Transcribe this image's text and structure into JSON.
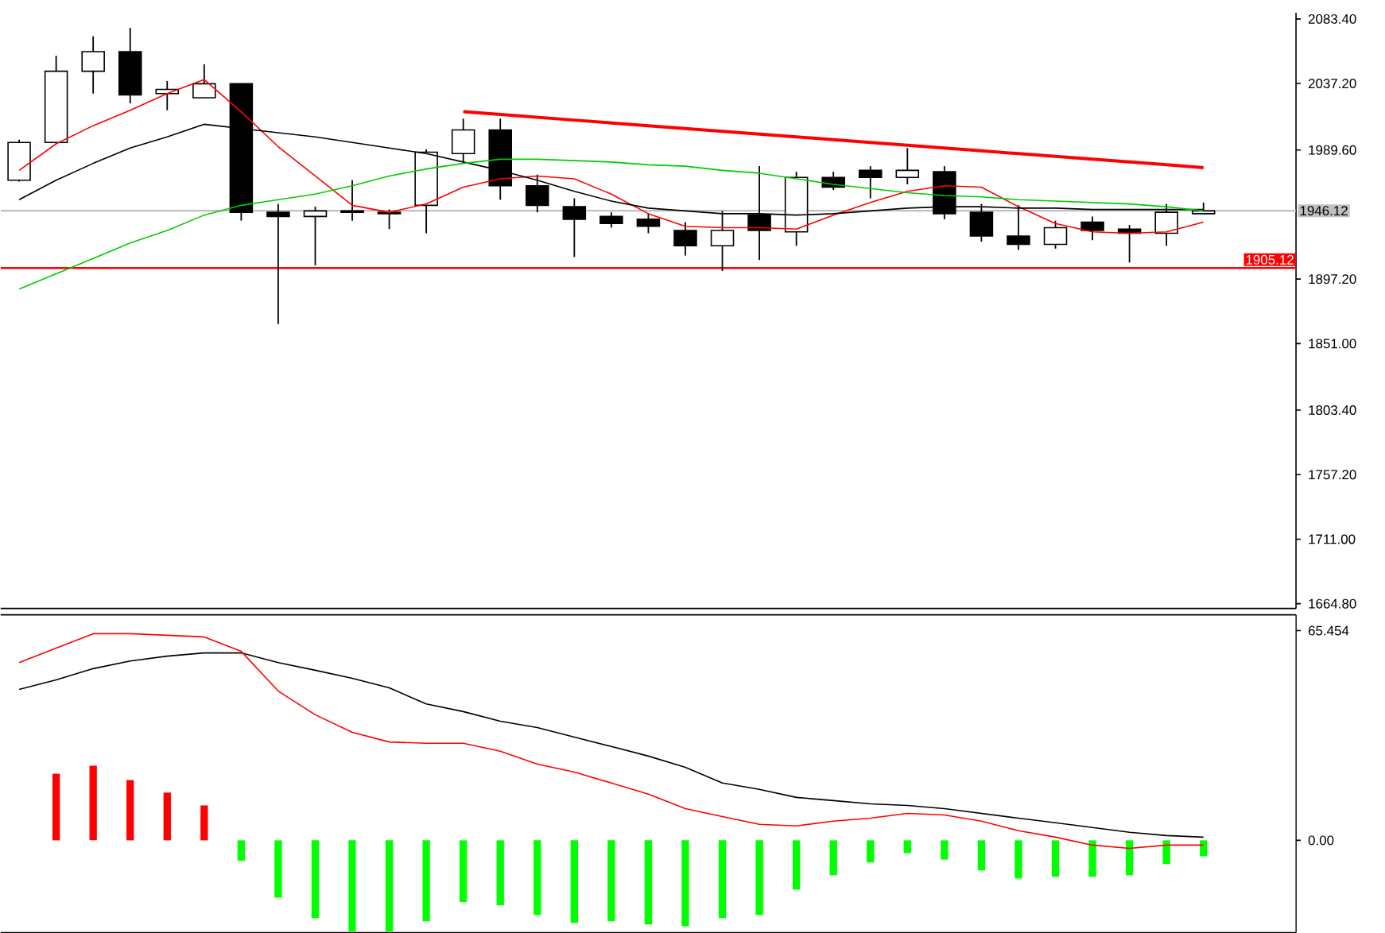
{
  "chart_data": [
    {
      "type": "candlestick",
      "tick_labels": "y",
      "categories": [
        null,
        null,
        null,
        null,
        null,
        null,
        null,
        null,
        null,
        null,
        null,
        null,
        null,
        null,
        null,
        null,
        null,
        null,
        null,
        null,
        null,
        null,
        null,
        null,
        null,
        null,
        null,
        null,
        null,
        null,
        null,
        null,
        null
      ],
      "ohlc": [
        [
          1968,
          1997,
          1967,
          1995
        ],
        [
          1995,
          2057,
          1994,
          2046
        ],
        [
          2046,
          2071,
          2030,
          2060
        ],
        [
          2060,
          2077,
          2023,
          2029
        ],
        [
          2030,
          2039,
          2018,
          2033
        ],
        [
          2027,
          2051,
          2027,
          2037
        ],
        [
          2037,
          2037,
          1939,
          1945
        ],
        [
          1945,
          1951,
          1865,
          1942
        ],
        [
          1942,
          1949,
          1907,
          1946
        ],
        [
          1946,
          1968,
          1939,
          1945
        ],
        [
          1945,
          1947,
          1933,
          1944
        ],
        [
          1950,
          1990,
          1930,
          1988
        ],
        [
          1987,
          2012,
          1980,
          2004
        ],
        [
          2004,
          2012,
          1954,
          1964
        ],
        [
          1964,
          1972,
          1945,
          1950
        ],
        [
          1949,
          1955,
          1913,
          1940
        ],
        [
          1942,
          1945,
          1934,
          1937
        ],
        [
          1940,
          1944,
          1930,
          1935
        ],
        [
          1932,
          1938,
          1914,
          1921
        ],
        [
          1921,
          1946,
          1903,
          1932
        ],
        [
          1943,
          1978,
          1911,
          1932
        ],
        [
          1931,
          1974,
          1921,
          1970
        ],
        [
          1970,
          1974,
          1961,
          1963
        ],
        [
          1975,
          1978,
          1955,
          1970
        ],
        [
          1970,
          1991,
          1965,
          1975
        ],
        [
          1974,
          1978,
          1940,
          1944
        ],
        [
          1945,
          1951,
          1924,
          1928
        ],
        [
          1928,
          1950,
          1918,
          1922
        ],
        [
          1922,
          1939,
          1919,
          1934
        ],
        [
          1938,
          1942,
          1925,
          1932
        ],
        [
          1933,
          1936,
          1909,
          1930
        ],
        [
          1930,
          1951,
          1921,
          1945
        ],
        [
          1944,
          1952,
          1944,
          1946
        ]
      ],
      "series": [
        {
          "type": "line",
          "color": "#ff0000",
          "values": [
            1975,
            1994,
            2007,
            2018,
            2030,
            2040,
            2017,
            1992,
            1971,
            1950,
            1945,
            1951,
            1963,
            1969,
            1971,
            1969,
            1958,
            1944,
            1935,
            1934,
            1934,
            1933,
            1943,
            1952,
            1960,
            1964,
            1963,
            1949,
            1937,
            1931,
            1930,
            1931,
            1938
          ]
        },
        {
          "type": "line",
          "color": "#000000",
          "values": [
            1954,
            1968,
            1980,
            1991,
            1999,
            2008,
            2005,
            2002,
            1999,
            1995,
            1991,
            1987,
            1981,
            1975,
            1968,
            1960,
            1953,
            1948,
            1946,
            1944,
            1944,
            1943,
            1944,
            1946,
            1948,
            1949,
            1949,
            1948,
            1948,
            1947,
            1947,
            1947,
            1947
          ]
        },
        {
          "type": "line",
          "color": "#00cc00",
          "values": [
            1890,
            1901,
            1912,
            1923,
            1932,
            1943,
            1950,
            1954,
            1958,
            1964,
            1971,
            1976,
            1980,
            1983,
            1983,
            1982,
            1981,
            1979,
            1978,
            1975,
            1973,
            1969,
            1965,
            1962,
            1959,
            1957,
            1956,
            1954,
            1953,
            1952,
            1951,
            1949,
            1946
          ]
        },
        {
          "type": "line",
          "color": "#ff0000",
          "values": [
            null,
            null,
            null,
            null,
            null,
            null,
            null,
            null,
            null,
            null,
            null,
            null,
            2017,
            2015,
            2013,
            2011,
            2009,
            2007,
            2005,
            2003,
            2001,
            1999,
            1997,
            1995,
            1993,
            1991,
            1989,
            1987,
            1985,
            1983,
            1981,
            1979,
            1977
          ]
        }
      ],
      "ylim": [
        1661.4,
        2087.9
      ],
      "yticks": [
        {
          "value": 1664.8,
          "label": "1664.80"
        },
        {
          "value": 1711,
          "label": "1711.00"
        },
        {
          "value": 1757.2,
          "label": "1757.20"
        },
        {
          "value": 1803.4,
          "label": "1803.40"
        },
        {
          "value": 1851,
          "label": "1851.00"
        },
        {
          "value": 1897.2,
          "label": "1897.20"
        },
        {
          "value": 1989.6,
          "label": "1989.60"
        },
        {
          "value": 2037.2,
          "label": "2037.20"
        },
        {
          "value": 2083.4,
          "label": "2083.40"
        }
      ],
      "ref_lines": [
        {
          "axis": "y",
          "value": 1946.12,
          "label": "1946.12",
          "color": "#c0c0c0"
        },
        {
          "axis": "y",
          "value": 1905.12,
          "label": "1905.12",
          "color": "#ff0000"
        }
      ]
    },
    {
      "type": "bar",
      "tick_labels": "y",
      "categories": [
        null,
        null,
        null,
        null,
        null,
        null,
        null,
        null,
        null,
        null,
        null,
        null,
        null,
        null,
        null,
        null,
        null,
        null,
        null,
        null,
        null,
        null,
        null,
        null,
        null,
        null,
        null,
        null,
        null,
        null,
        null,
        null,
        null
      ],
      "series": [
        {
          "type": "bar",
          "values": [
            null,
            20.8,
            23.3,
            18.8,
            14.9,
            10.9,
            -6.4,
            -17.9,
            -24.3,
            -28.5,
            -28.5,
            -25.3,
            -19.3,
            -20.3,
            -23.3,
            -25.8,
            -25.3,
            -26.3,
            -26.8,
            -24.3,
            -23.3,
            -15.4,
            -10.9,
            -6.9,
            -4.0,
            -6.0,
            -9.4,
            -11.9,
            -11.4,
            -11.4,
            -10.9,
            -7.4,
            -5.0
          ],
          "colors": [
            null,
            "#ff0000",
            "#ff0000",
            "#ff0000",
            "#ff0000",
            "#ff0000",
            "#00ff00",
            "#00ff00",
            "#00ff00",
            "#00ff00",
            "#00ff00",
            "#00ff00",
            "#00ff00",
            "#00ff00",
            "#00ff00",
            "#00ff00",
            "#00ff00",
            "#00ff00",
            "#00ff00",
            "#00ff00",
            "#00ff00",
            "#00ff00",
            "#00ff00",
            "#00ff00",
            "#00ff00",
            "#00ff00",
            "#00ff00",
            "#00ff00",
            "#00ff00",
            "#00ff00",
            "#00ff00",
            "#00ff00",
            "#00ff00"
          ]
        },
        {
          "type": "line",
          "color": "#000000",
          "values": [
            47.1,
            50.1,
            53.6,
            56.0,
            57.5,
            58.5,
            58.5,
            55.5,
            53.1,
            50.6,
            47.6,
            42.6,
            40.2,
            37.2,
            35.2,
            32.2,
            29.3,
            26.3,
            22.8,
            17.9,
            15.9,
            13.4,
            12.4,
            11.4,
            10.9,
            9.9,
            8.4,
            6.9,
            5.5,
            4.0,
            2.5,
            1.5,
            1.0
          ]
        },
        {
          "type": "line",
          "color": "#ff0000",
          "values": [
            55.5,
            60.0,
            64.5,
            64.5,
            64.0,
            63.5,
            59.0,
            46.6,
            39.2,
            33.7,
            30.7,
            30.3,
            30.3,
            27.8,
            23.8,
            21.3,
            17.9,
            14.4,
            9.9,
            7.4,
            5.0,
            4.5,
            6.0,
            6.9,
            8.4,
            7.9,
            6.0,
            3.0,
            1.0,
            -1.5,
            -2.5,
            -1.5,
            -1.5
          ]
        }
      ],
      "ylim": [
        -28.8,
        70.4
      ],
      "yticks": [
        {
          "value": 0,
          "label": "0.00"
        },
        65.454
      ]
    }
  ]
}
